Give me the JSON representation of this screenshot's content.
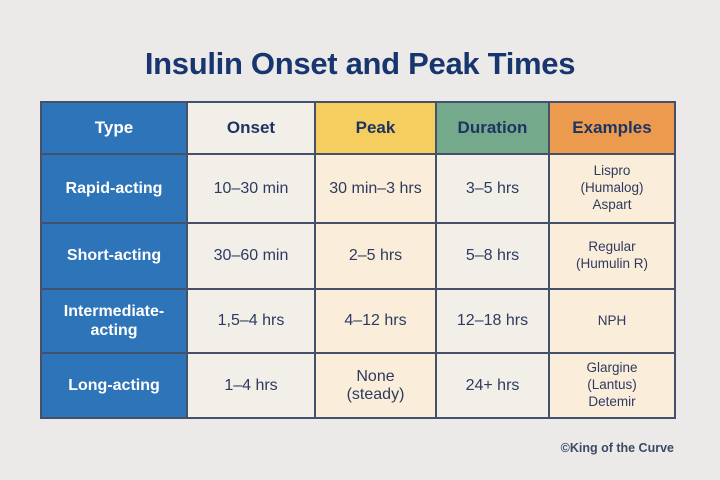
{
  "page": {
    "title": "Insulin Onset and Peak Times",
    "credit": "©King of the Curve"
  },
  "colors": {
    "background": "#ebeae8",
    "title_navy": "#17356e",
    "type_column_blue": "#2e74b8",
    "peak_header_yellow": "#f6ce5f",
    "duration_header_green": "#74a98c",
    "examples_header_orange": "#eb9a4e",
    "body_offwhite_cell": "#f2efe9",
    "body_cream_cell": "#faeedb",
    "cell_border": "#45506a",
    "body_text_navy": "#2e3a5e"
  },
  "table": {
    "headers": {
      "type": "Type",
      "onset": "Onset",
      "peak": "Peak",
      "duration": "Duration",
      "examples": "Examples"
    },
    "rows": [
      {
        "type": "Rapid-acting",
        "onset": "10–30 min",
        "peak": "30 min–3 hrs",
        "duration": "3–5 hrs",
        "examples": "Lispro\n(Humalog)\nAspart"
      },
      {
        "type": "Short-acting",
        "onset": "30–60 min",
        "peak": "2–5 hrs",
        "duration": "5–8 hrs",
        "examples": "Regular\n(Humulin R)"
      },
      {
        "type": "Intermediate-\nacting",
        "onset": "1,5–4 hrs",
        "peak": "4–12 hrs",
        "duration": "12–18 hrs",
        "examples": "NPH"
      },
      {
        "type": "Long-acting",
        "onset": "1–4 hrs",
        "peak": "None\n(steady)",
        "duration": "24+ hrs",
        "examples": "Glargine\n(Lantus)\nDetemir"
      }
    ]
  },
  "chart_data": {
    "type": "table",
    "title": "Insulin Onset and Peak Times",
    "columns": [
      "Type",
      "Onset",
      "Peak",
      "Duration",
      "Examples"
    ],
    "rows": [
      [
        "Rapid-acting",
        "10–30 min",
        "30 min–3 hrs",
        "3–5 hrs",
        "Lispro (Humalog) Aspart"
      ],
      [
        "Short-acting",
        "30–60 min",
        "2–5 hrs",
        "5–8 hrs",
        "Regular (Humulin R)"
      ],
      [
        "Intermediate-acting",
        "1,5–4 hrs",
        "4–12 hrs",
        "12–18 hrs",
        "NPH"
      ],
      [
        "Long-acting",
        "1–4 hrs",
        "None (steady)",
        "24+ hrs",
        "Glargine (Lantus) Detemir"
      ]
    ]
  }
}
